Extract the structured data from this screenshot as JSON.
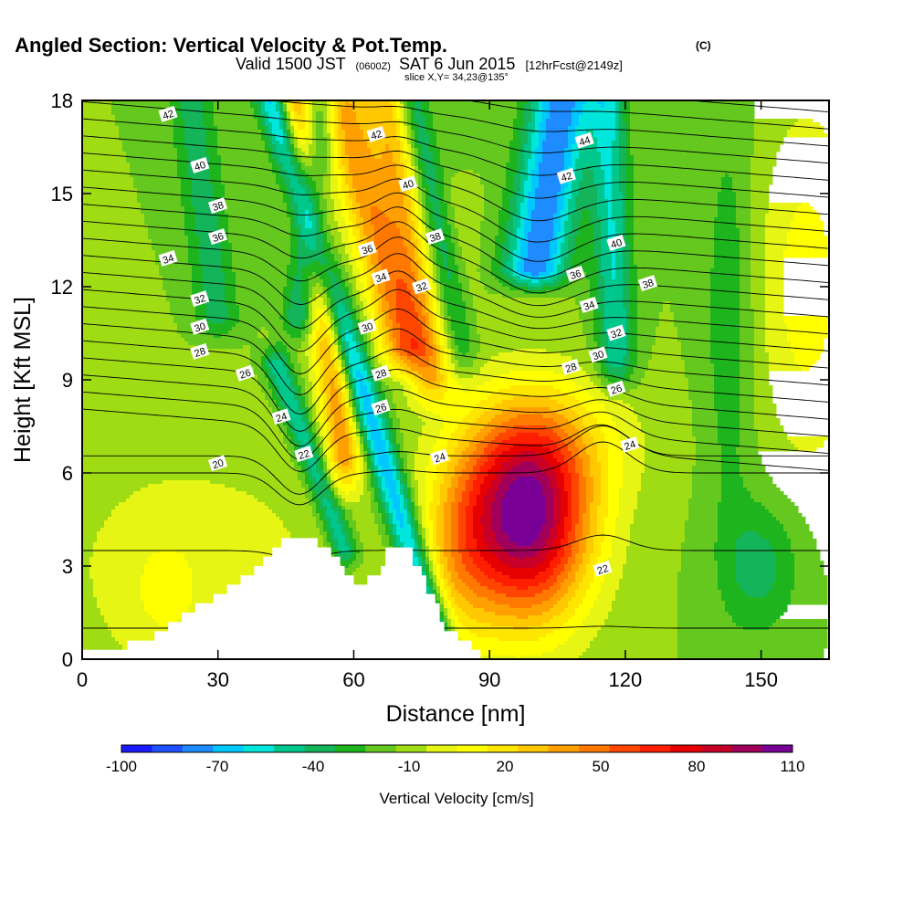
{
  "header": {
    "title_main": "Angled Section: Vertical Velocity & Pot.Temp.",
    "title_tag": "(C)",
    "valid_a": "Valid 1500 JST",
    "valid_b": "(0600Z)",
    "valid_c": "SAT 6 Jun 2015",
    "valid_d": "[12hrFcst@2149z]",
    "slice": "slice X,Y= 34,23@135°"
  },
  "chart_data": {
    "type": "heatmap",
    "title": "Angled Section: Vertical Velocity & Pot.Temp. (C)",
    "xlabel": "Distance [nm]",
    "ylabel": "Height [Kft MSL]",
    "xlim": [
      0,
      165
    ],
    "ylim": [
      0,
      18
    ],
    "x_ticks": [
      {
        "value": 0,
        "label": "0"
      },
      {
        "value": 30,
        "label": "30"
      },
      {
        "value": 60,
        "label": "60"
      },
      {
        "value": 90,
        "label": "90"
      },
      {
        "value": 120,
        "label": "120"
      },
      {
        "value": 150,
        "label": "150"
      }
    ],
    "y_ticks": [
      {
        "value": 0,
        "label": "0"
      },
      {
        "value": 3,
        "label": "3"
      },
      {
        "value": 6,
        "label": "6"
      },
      {
        "value": 9,
        "label": "9"
      },
      {
        "value": 12,
        "label": "12"
      },
      {
        "value": 15,
        "label": "15"
      },
      {
        "value": 18,
        "label": "18"
      }
    ],
    "colorbar": {
      "label": "Vertical Velocity [cm/s]",
      "min": -100,
      "max": 110,
      "step": 10,
      "labeled_values": [
        -100,
        -70,
        -40,
        -10,
        20,
        50,
        80,
        110
      ],
      "colors": [
        "#1a1aff",
        "#1e50ff",
        "#1e8cff",
        "#00c8ff",
        "#00e6dc",
        "#00c88c",
        "#14b45a",
        "#1eb41e",
        "#64c81e",
        "#a0dc14",
        "#e6f514",
        "#ffff00",
        "#ffe600",
        "#ffc800",
        "#ffa000",
        "#ff7800",
        "#ff4600",
        "#ff1e00",
        "#e60000",
        "#c80028",
        "#a0005a",
        "#780096"
      ]
    },
    "velocity_field": {
      "background": -10,
      "features": [
        {
          "x": 98,
          "y": 4.5,
          "sx": 10,
          "sy": 2.3,
          "value": 125
        },
        {
          "x": 83,
          "y": 3.5,
          "sx": 6,
          "sy": 2.2,
          "value": 30
        },
        {
          "x": 104,
          "y": 7.0,
          "sx": 14,
          "sy": 1.5,
          "value": 22
        },
        {
          "x": 150,
          "y": 3.0,
          "sx": 6,
          "sy": 1.5,
          "value": -25
        },
        {
          "x": 25,
          "y": 3.0,
          "sx": 25,
          "sy": 3.0,
          "value": 15
        },
        {
          "x": 18,
          "y": 2.0,
          "sx": 6,
          "sy": 1.5,
          "value": 10
        },
        {
          "x": 160,
          "y": 12.0,
          "sx": 8,
          "sy": 4.0,
          "value": 25
        },
        {
          "x": 143,
          "y": 11.0,
          "sx": 4,
          "sy": 5.0,
          "value": -18
        }
      ],
      "bands": [
        {
          "x0": 42,
          "y0": 18,
          "x1": 78,
          "y1": 1.0,
          "w": 2.6,
          "value": -60
        },
        {
          "x0": 57,
          "y0": 18,
          "x1": 71,
          "y1": 10.0,
          "w": 4.0,
          "value": 55
        },
        {
          "x0": 53,
          "y0": 18,
          "x1": 48,
          "y1": 11.0,
          "w": 2.6,
          "value": -35
        },
        {
          "x0": 47,
          "y0": 18,
          "x1": 58,
          "y1": 6.5,
          "w": 2.8,
          "value": 55
        },
        {
          "x0": 43,
          "y0": 9.5,
          "x1": 58,
          "y1": 3.5,
          "w": 2.2,
          "value": -40
        },
        {
          "x0": 67,
          "y0": 18,
          "x1": 77,
          "y1": 9.0,
          "w": 3.5,
          "value": 45
        },
        {
          "x0": 73,
          "y0": 18,
          "x1": 84,
          "y1": 10.0,
          "w": 2.5,
          "value": -30
        },
        {
          "x0": 106,
          "y0": 18,
          "x1": 100,
          "y1": 12.5,
          "w": 5.0,
          "value": -68
        },
        {
          "x0": 116,
          "y0": 18,
          "x1": 118,
          "y1": 9.5,
          "w": 3.0,
          "value": -40
        },
        {
          "x0": 24,
          "y0": 18,
          "x1": 30,
          "y1": 11.0,
          "w": 3.5,
          "value": -25
        },
        {
          "x0": 83,
          "y0": 15,
          "x1": 84,
          "y1": 10.0,
          "w": 3.0,
          "value": 8
        }
      ]
    },
    "theta_contours": {
      "levels": [
        20,
        22,
        24,
        26,
        28,
        30,
        32,
        34,
        36,
        38,
        40,
        42,
        44
      ],
      "labels": [
        {
          "text": "42",
          "x": 19,
          "y": 17.55
        },
        {
          "text": "42",
          "x": 65,
          "y": 16.9
        },
        {
          "text": "44",
          "x": 111,
          "y": 16.7
        },
        {
          "text": "40",
          "x": 26,
          "y": 15.9
        },
        {
          "text": "40",
          "x": 72,
          "y": 15.3
        },
        {
          "text": "42",
          "x": 107,
          "y": 15.55
        },
        {
          "text": "38",
          "x": 30,
          "y": 14.6
        },
        {
          "text": "38",
          "x": 78,
          "y": 13.6
        },
        {
          "text": "36",
          "x": 30,
          "y": 13.6
        },
        {
          "text": "40",
          "x": 118,
          "y": 13.4
        },
        {
          "text": "36",
          "x": 63,
          "y": 13.2
        },
        {
          "text": "34",
          "x": 19,
          "y": 12.9
        },
        {
          "text": "34",
          "x": 66,
          "y": 12.3
        },
        {
          "text": "36",
          "x": 109,
          "y": 12.4
        },
        {
          "text": "38",
          "x": 125,
          "y": 12.1
        },
        {
          "text": "32",
          "x": 75,
          "y": 12.0
        },
        {
          "text": "32",
          "x": 26,
          "y": 11.6
        },
        {
          "text": "34",
          "x": 112,
          "y": 11.4
        },
        {
          "text": "30",
          "x": 26,
          "y": 10.7
        },
        {
          "text": "30",
          "x": 63,
          "y": 10.7
        },
        {
          "text": "32",
          "x": 118,
          "y": 10.5
        },
        {
          "text": "28",
          "x": 26,
          "y": 9.9
        },
        {
          "text": "30",
          "x": 114,
          "y": 9.8
        },
        {
          "text": "28",
          "x": 108,
          "y": 9.4
        },
        {
          "text": "26",
          "x": 36,
          "y": 9.2
        },
        {
          "text": "28",
          "x": 66,
          "y": 9.2
        },
        {
          "text": "26",
          "x": 118,
          "y": 8.7
        },
        {
          "text": "26",
          "x": 66,
          "y": 8.1
        },
        {
          "text": "24",
          "x": 44,
          "y": 7.8
        },
        {
          "text": "24",
          "x": 121,
          "y": 6.9
        },
        {
          "text": "22",
          "x": 49,
          "y": 6.6
        },
        {
          "text": "24",
          "x": 79,
          "y": 6.5
        },
        {
          "text": "20",
          "x": 30,
          "y": 6.3
        },
        {
          "text": "22",
          "x": 115,
          "y": 2.9
        }
      ]
    },
    "terrain_outline": [
      [
        0,
        0
      ],
      [
        0,
        0.3
      ],
      [
        10,
        0.3
      ],
      [
        10,
        0.6
      ],
      [
        16,
        0.6
      ],
      [
        16,
        0.9
      ],
      [
        19,
        0.9
      ],
      [
        19,
        1.2
      ],
      [
        22,
        1.2
      ],
      [
        22,
        1.5
      ],
      [
        25,
        1.5
      ],
      [
        25,
        1.8
      ],
      [
        29,
        1.8
      ],
      [
        29,
        2.1
      ],
      [
        32,
        2.1
      ],
      [
        32,
        2.4
      ],
      [
        35,
        2.4
      ],
      [
        35,
        2.7
      ],
      [
        38,
        2.7
      ],
      [
        38,
        3.0
      ],
      [
        40,
        3.0
      ],
      [
        40,
        3.3
      ],
      [
        42,
        3.3
      ],
      [
        42,
        3.6
      ],
      [
        44,
        3.6
      ],
      [
        44,
        3.9
      ],
      [
        52,
        3.9
      ],
      [
        52,
        3.6
      ],
      [
        55,
        3.6
      ],
      [
        55,
        3.3
      ],
      [
        57,
        3.3
      ],
      [
        57,
        3.0
      ],
      [
        58,
        3.0
      ],
      [
        58,
        2.7
      ],
      [
        60,
        2.7
      ],
      [
        60,
        2.4
      ],
      [
        63,
        2.4
      ],
      [
        63,
        2.7
      ],
      [
        66,
        2.7
      ],
      [
        66,
        3.0
      ],
      [
        67,
        3.0
      ],
      [
        67,
        3.6
      ],
      [
        73,
        3.6
      ],
      [
        73,
        3.0
      ],
      [
        75,
        3.0
      ],
      [
        75,
        2.7
      ],
      [
        76,
        2.7
      ],
      [
        76,
        2.1
      ],
      [
        78,
        2.1
      ],
      [
        78,
        1.8
      ],
      [
        79,
        1.8
      ],
      [
        79,
        1.2
      ],
      [
        80,
        1.2
      ],
      [
        80,
        0.9
      ],
      [
        83,
        0.9
      ],
      [
        83,
        0.6
      ],
      [
        86,
        0.6
      ],
      [
        86,
        0.3
      ],
      [
        88,
        0.3
      ],
      [
        88,
        0
      ]
    ]
  }
}
